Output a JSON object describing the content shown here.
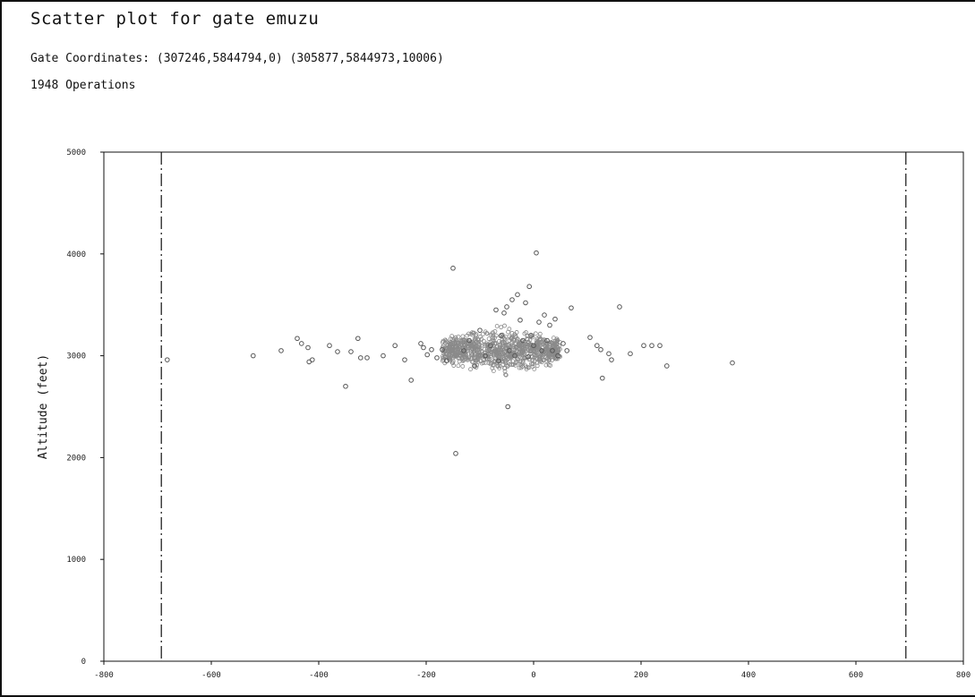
{
  "header": {
    "title": "Scatter plot for gate emuzu",
    "coordinates": "Gate Coordinates: (307246,5844794,0) (305877,5844973,10006)",
    "operations": "1948 Operations"
  },
  "chart_data": {
    "type": "scatter",
    "title": "Scatter plot for gate emuzu",
    "xlabel": "",
    "ylabel": "Altitude (feet)",
    "xlim": [
      -800,
      800
    ],
    "ylim": [
      0,
      5000
    ],
    "xticks": [
      -800,
      -600,
      -400,
      -200,
      0,
      200,
      400,
      600,
      800
    ],
    "yticks": [
      0,
      1000,
      2000,
      3000,
      4000,
      5000
    ],
    "gate_bounds_x": [
      -693,
      693
    ],
    "grid": false,
    "legend": "none",
    "marker_color": "#555555",
    "points": [
      {
        "x": -682,
        "y": 2960
      },
      {
        "x": -522,
        "y": 3000
      },
      {
        "x": -470,
        "y": 3050
      },
      {
        "x": -440,
        "y": 3170
      },
      {
        "x": -432,
        "y": 3120
      },
      {
        "x": -420,
        "y": 3080
      },
      {
        "x": -418,
        "y": 2940
      },
      {
        "x": -412,
        "y": 2960
      },
      {
        "x": -380,
        "y": 3100
      },
      {
        "x": -365,
        "y": 3040
      },
      {
        "x": -350,
        "y": 2700
      },
      {
        "x": -340,
        "y": 3040
      },
      {
        "x": -327,
        "y": 3170
      },
      {
        "x": -322,
        "y": 2980
      },
      {
        "x": -310,
        "y": 2980
      },
      {
        "x": -280,
        "y": 3000
      },
      {
        "x": -258,
        "y": 3100
      },
      {
        "x": -240,
        "y": 2960
      },
      {
        "x": -228,
        "y": 2760
      },
      {
        "x": -210,
        "y": 3120
      },
      {
        "x": -205,
        "y": 3080
      },
      {
        "x": -198,
        "y": 3010
      },
      {
        "x": -190,
        "y": 3060
      },
      {
        "x": -180,
        "y": 2980
      },
      {
        "x": -170,
        "y": 3060
      },
      {
        "x": -162,
        "y": 2950
      },
      {
        "x": -150,
        "y": 3860
      },
      {
        "x": -145,
        "y": 2040
      },
      {
        "x": -130,
        "y": 3050
      },
      {
        "x": -120,
        "y": 3150
      },
      {
        "x": -110,
        "y": 2900
      },
      {
        "x": -100,
        "y": 3250
      },
      {
        "x": -90,
        "y": 3000
      },
      {
        "x": -80,
        "y": 3100
      },
      {
        "x": -70,
        "y": 3450
      },
      {
        "x": -65,
        "y": 2950
      },
      {
        "x": -60,
        "y": 3200
      },
      {
        "x": -55,
        "y": 3420
      },
      {
        "x": -50,
        "y": 3480
      },
      {
        "x": -48,
        "y": 2500
      },
      {
        "x": -45,
        "y": 3050
      },
      {
        "x": -40,
        "y": 3550
      },
      {
        "x": -35,
        "y": 3000
      },
      {
        "x": -30,
        "y": 3600
      },
      {
        "x": -25,
        "y": 3350
      },
      {
        "x": -20,
        "y": 3150
      },
      {
        "x": -15,
        "y": 3520
      },
      {
        "x": -10,
        "y": 2990
      },
      {
        "x": -8,
        "y": 3680
      },
      {
        "x": -5,
        "y": 3200
      },
      {
        "x": 0,
        "y": 3100
      },
      {
        "x": 5,
        "y": 4010
      },
      {
        "x": 10,
        "y": 3330
      },
      {
        "x": 15,
        "y": 3050
      },
      {
        "x": 20,
        "y": 3400
      },
      {
        "x": 25,
        "y": 3150
      },
      {
        "x": 30,
        "y": 3300
      },
      {
        "x": 35,
        "y": 3050
      },
      {
        "x": 40,
        "y": 3360
      },
      {
        "x": 45,
        "y": 3000
      },
      {
        "x": 55,
        "y": 3120
      },
      {
        "x": 62,
        "y": 3050
      },
      {
        "x": 70,
        "y": 3470
      },
      {
        "x": 105,
        "y": 3180
      },
      {
        "x": 118,
        "y": 3100
      },
      {
        "x": 125,
        "y": 3060
      },
      {
        "x": 128,
        "y": 2780
      },
      {
        "x": 140,
        "y": 3020
      },
      {
        "x": 145,
        "y": 2960
      },
      {
        "x": 160,
        "y": 3480
      },
      {
        "x": 180,
        "y": 3020
      },
      {
        "x": 205,
        "y": 3100
      },
      {
        "x": 220,
        "y": 3100
      },
      {
        "x": 235,
        "y": 3100
      },
      {
        "x": 248,
        "y": 2900
      },
      {
        "x": 370,
        "y": 2930
      }
    ],
    "dense_cluster": {
      "count": 1872,
      "x_range": [
        -170,
        50
      ],
      "y_center": 3050,
      "y_spread": 120
    }
  }
}
